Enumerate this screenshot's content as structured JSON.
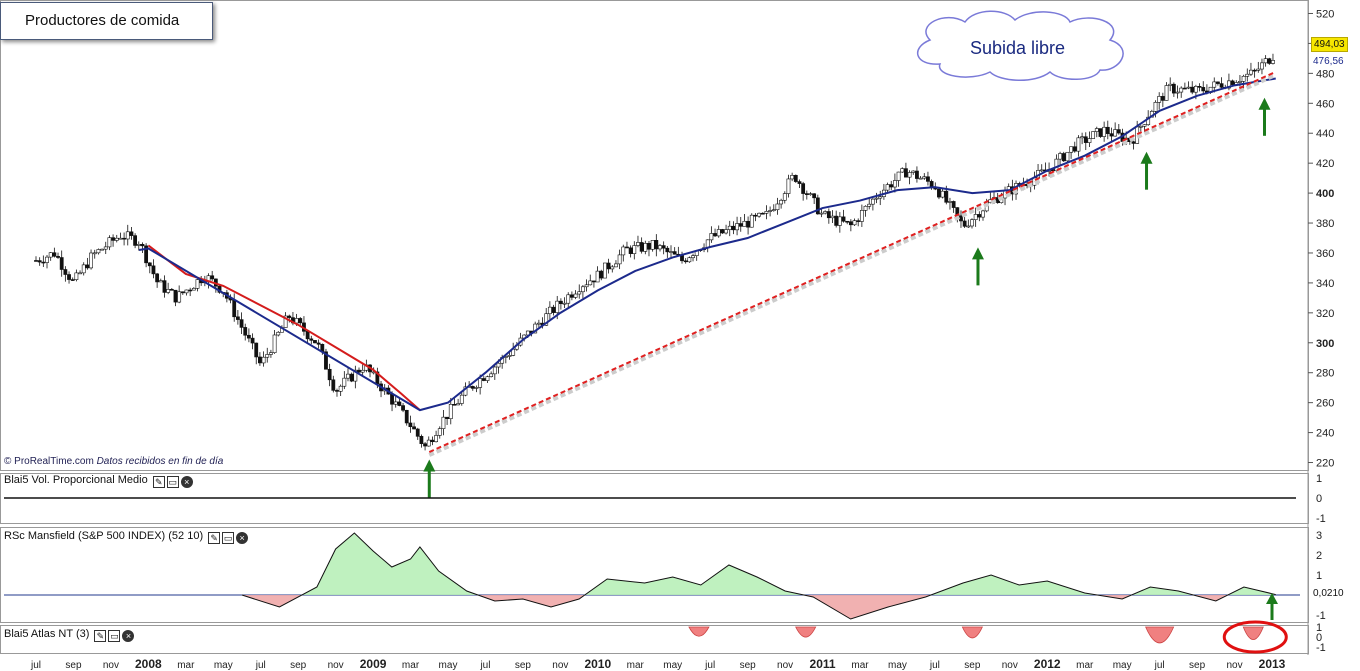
{
  "title": "Productores de comida",
  "annotation": "Subida libre",
  "source": {
    "brand": "© ProRealTime.com",
    "note": "Datos recibidos en fin de día"
  },
  "price_badges": {
    "last": "494,03",
    "ma": "476,56"
  },
  "indicators": {
    "vol": {
      "label": "Blai5 Vol. Proporcional Medio",
      "ticks": [
        "1",
        "0",
        "-1"
      ]
    },
    "rsc": {
      "label": "RSc Mansfield (S&P 500 INDEX) (52 10)",
      "ticks": [
        "3",
        "2",
        "1",
        "-1"
      ],
      "last": "0,0210"
    },
    "atlas": {
      "label": "Blai5 Atlas NT (3)",
      "ticks": [
        "1",
        "0",
        "-1"
      ]
    }
  },
  "colors": {
    "up_fill": "#ffffff",
    "down_fill": "#111111",
    "ma_red": "#d41c1c",
    "ma_blue": "#1c2a8c",
    "trend": "#e02020",
    "arrow": "#1b7a1b",
    "rsc_pos": "#b8f0b8",
    "rsc_neg": "#f0a8a8",
    "atlas_neg": "#f08080"
  },
  "icons": [
    "wrench-icon",
    "window-icon",
    "close-icon"
  ],
  "chart_data": {
    "type": "candlestick",
    "title": "Productores de comida",
    "y_ticks": [
      220,
      240,
      260,
      280,
      300,
      320,
      340,
      360,
      380,
      400,
      420,
      440,
      460,
      480,
      500,
      520
    ],
    "ylim": [
      215,
      525
    ],
    "x_labels": [
      {
        "t": 0.0,
        "label": "jul"
      },
      {
        "t": 0.2,
        "label": "sep"
      },
      {
        "t": 0.4,
        "label": "nov"
      },
      {
        "t": 0.6,
        "label": "2008",
        "year": true
      },
      {
        "t": 0.8,
        "label": "mar"
      },
      {
        "t": 1.0,
        "label": "may"
      },
      {
        "t": 1.2,
        "label": "jul"
      },
      {
        "t": 1.4,
        "label": "sep"
      },
      {
        "t": 1.6,
        "label": "nov"
      },
      {
        "t": 1.8,
        "label": "2009",
        "year": true
      },
      {
        "t": 2.0,
        "label": "mar"
      },
      {
        "t": 2.2,
        "label": "may"
      },
      {
        "t": 2.4,
        "label": "jul"
      },
      {
        "t": 2.6,
        "label": "sep"
      },
      {
        "t": 2.8,
        "label": "nov"
      },
      {
        "t": 3.0,
        "label": "2010",
        "year": true
      },
      {
        "t": 3.2,
        "label": "mar"
      },
      {
        "t": 3.4,
        "label": "may"
      },
      {
        "t": 3.6,
        "label": "jul"
      },
      {
        "t": 3.8,
        "label": "sep"
      },
      {
        "t": 4.0,
        "label": "nov"
      },
      {
        "t": 4.2,
        "label": "2011",
        "year": true
      },
      {
        "t": 4.4,
        "label": "mar"
      },
      {
        "t": 4.6,
        "label": "may"
      },
      {
        "t": 4.8,
        "label": "jul"
      },
      {
        "t": 5.0,
        "label": "sep"
      },
      {
        "t": 5.2,
        "label": "nov"
      },
      {
        "t": 5.4,
        "label": "2012",
        "year": true
      },
      {
        "t": 5.6,
        "label": "mar"
      },
      {
        "t": 5.8,
        "label": "may"
      },
      {
        "t": 6.0,
        "label": "jul"
      },
      {
        "t": 6.2,
        "label": "sep"
      },
      {
        "t": 6.4,
        "label": "nov"
      },
      {
        "t": 6.6,
        "label": "2013",
        "year": true
      }
    ],
    "price_path": [
      [
        0.0,
        355
      ],
      [
        0.1,
        360
      ],
      [
        0.2,
        340
      ],
      [
        0.3,
        358
      ],
      [
        0.45,
        372
      ],
      [
        0.55,
        368
      ],
      [
        0.65,
        340
      ],
      [
        0.75,
        330
      ],
      [
        0.9,
        345
      ],
      [
        1.0,
        335
      ],
      [
        1.1,
        310
      ],
      [
        1.2,
        285
      ],
      [
        1.35,
        318
      ],
      [
        1.5,
        300
      ],
      [
        1.6,
        268
      ],
      [
        1.75,
        285
      ],
      [
        1.9,
        262
      ],
      [
        2.0,
        245
      ],
      [
        2.08,
        230
      ],
      [
        2.15,
        245
      ],
      [
        2.3,
        268
      ],
      [
        2.5,
        290
      ],
      [
        2.7,
        315
      ],
      [
        2.9,
        338
      ],
      [
        3.0,
        345
      ],
      [
        3.15,
        362
      ],
      [
        3.3,
        365
      ],
      [
        3.45,
        355
      ],
      [
        3.6,
        370
      ],
      [
        3.75,
        378
      ],
      [
        3.9,
        385
      ],
      [
        4.05,
        412
      ],
      [
        4.2,
        385
      ],
      [
        4.35,
        378
      ],
      [
        4.5,
        400
      ],
      [
        4.65,
        415
      ],
      [
        4.8,
        405
      ],
      [
        4.95,
        378
      ],
      [
        5.1,
        395
      ],
      [
        5.25,
        405
      ],
      [
        5.4,
        415
      ],
      [
        5.55,
        432
      ],
      [
        5.7,
        442
      ],
      [
        5.85,
        435
      ],
      [
        5.95,
        455
      ],
      [
        6.05,
        470
      ],
      [
        6.2,
        468
      ],
      [
        6.35,
        474
      ],
      [
        6.5,
        480
      ],
      [
        6.62,
        494
      ]
    ],
    "ma_red": [
      [
        0.6,
        365
      ],
      [
        0.8,
        346
      ],
      [
        1.0,
        338
      ],
      [
        1.2,
        325
      ],
      [
        1.4,
        312
      ],
      [
        1.6,
        297
      ],
      [
        1.8,
        282
      ],
      [
        1.95,
        266
      ],
      [
        2.05,
        255
      ]
    ],
    "ma_blue": [
      [
        0.55,
        362
      ],
      [
        0.6,
        363
      ],
      [
        2.05,
        255
      ],
      [
        2.2,
        260
      ],
      [
        2.4,
        280
      ],
      [
        2.6,
        302
      ],
      [
        2.8,
        320
      ],
      [
        3.0,
        335
      ],
      [
        3.2,
        348
      ],
      [
        3.4,
        357
      ],
      [
        3.6,
        364
      ],
      [
        3.8,
        370
      ],
      [
        4.0,
        380
      ],
      [
        4.2,
        390
      ],
      [
        4.4,
        395
      ],
      [
        4.6,
        402
      ],
      [
        4.8,
        404
      ],
      [
        5.0,
        400
      ],
      [
        5.2,
        402
      ],
      [
        5.4,
        415
      ],
      [
        5.6,
        425
      ],
      [
        5.8,
        438
      ],
      [
        6.0,
        455
      ],
      [
        6.2,
        465
      ],
      [
        6.4,
        472
      ],
      [
        6.62,
        476.56
      ]
    ],
    "trendline": [
      [
        2.1,
        227
      ],
      [
        6.62,
        481
      ]
    ],
    "arrows_at": [
      2.1,
      5.03,
      5.93,
      6.56
    ],
    "rsc_series": [
      [
        1.1,
        0
      ],
      [
        1.3,
        -0.6
      ],
      [
        1.5,
        0.4
      ],
      [
        1.6,
        2.3
      ],
      [
        1.7,
        3.1
      ],
      [
        1.8,
        2.2
      ],
      [
        1.9,
        1.4
      ],
      [
        2.0,
        1.8
      ],
      [
        2.05,
        2.4
      ],
      [
        2.15,
        1.2
      ],
      [
        2.3,
        0.2
      ],
      [
        2.45,
        -0.3
      ],
      [
        2.6,
        -0.2
      ],
      [
        2.75,
        -0.6
      ],
      [
        2.9,
        -0.2
      ],
      [
        3.05,
        0.8
      ],
      [
        3.25,
        0.6
      ],
      [
        3.4,
        0.9
      ],
      [
        3.55,
        0.5
      ],
      [
        3.7,
        1.5
      ],
      [
        3.85,
        0.9
      ],
      [
        4.0,
        0.2
      ],
      [
        4.15,
        -0.1
      ],
      [
        4.35,
        -1.2
      ],
      [
        4.55,
        -0.6
      ],
      [
        4.75,
        -0.1
      ],
      [
        4.95,
        0.6
      ],
      [
        5.1,
        1.0
      ],
      [
        5.25,
        0.5
      ],
      [
        5.4,
        0.7
      ],
      [
        5.6,
        0.1
      ],
      [
        5.8,
        -0.2
      ],
      [
        5.95,
        0.4
      ],
      [
        6.1,
        0.2
      ],
      [
        6.3,
        -0.3
      ],
      [
        6.45,
        0.4
      ],
      [
        6.62,
        0.021
      ]
    ],
    "atlas_dips": [
      [
        3.54,
        -0.55
      ],
      [
        4.11,
        -0.6
      ],
      [
        5.0,
        -0.65
      ],
      [
        6.0,
        -0.95
      ],
      [
        6.5,
        -0.75
      ]
    ]
  }
}
